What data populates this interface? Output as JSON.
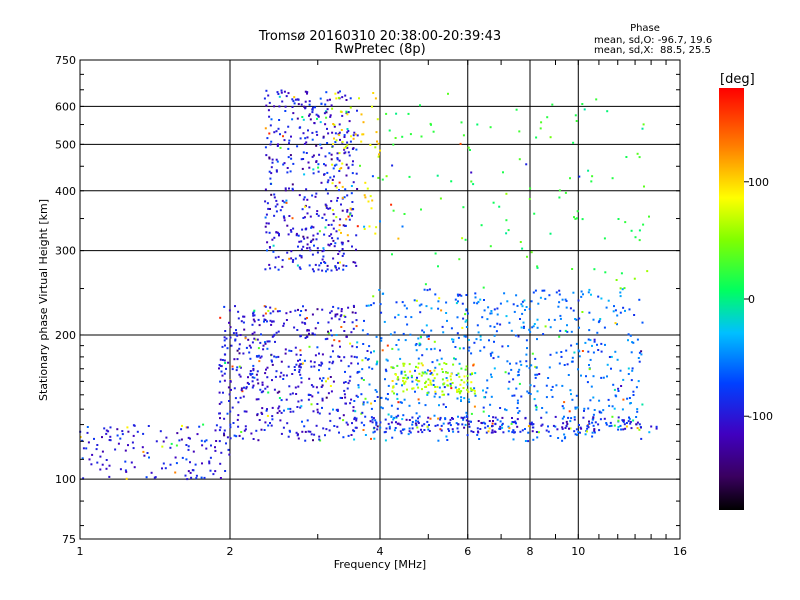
{
  "chart_data": {
    "type": "scatter",
    "title": "Tromsø 20160310 20:38:00-20:39:43",
    "subtitle": "RwPretec (8p)",
    "xlabel": "Frequency [MHz]",
    "ylabel": "Stationary phase Virtual Height [km]",
    "x_scale": "log",
    "y_scale": "log",
    "xlim": [
      1,
      16
    ],
    "ylim": [
      75,
      750
    ],
    "x_ticks": [
      1,
      2,
      4,
      6,
      8,
      10,
      16
    ],
    "x_tick_labels": [
      "1",
      "2",
      "4",
      "6",
      "8",
      "10",
      "16"
    ],
    "y_ticks": [
      75,
      100,
      200,
      300,
      400,
      500,
      600,
      750
    ],
    "y_tick_labels": [
      "75",
      "100",
      "200",
      "300",
      "400",
      "500",
      "600",
      "750"
    ],
    "grid": true,
    "phase_stats": {
      "heading": "Phase",
      "line_o": "mean, sd,O: -96.7, 19.6",
      "line_x": "mean, sd,X:  88.5, 25.5"
    },
    "colorbar": {
      "label": "[deg]",
      "range": [
        -180,
        180
      ],
      "ticks": [
        100,
        0,
        -100
      ],
      "tick_labels": [
        "100",
        "0",
        "-100"
      ],
      "colormap": "rainbow (black-violet-blue-cyan-green-yellow-orange-red)"
    },
    "point_clusters": [
      {
        "description": "low echo trace",
        "x_range": [
          1.0,
          2.0
        ],
        "y_range": [
          100,
          130
        ],
        "phase_mean": -100,
        "count": 140
      },
      {
        "description": "E/F1 region main cluster",
        "x_range": [
          1.9,
          3.6
        ],
        "y_range": [
          120,
          230
        ],
        "phase_mean": -100,
        "count": 520
      },
      {
        "description": "F2 region O-mode trace",
        "x_range": [
          2.35,
          3.6
        ],
        "y_range": [
          270,
          650
        ],
        "phase_mean": -100,
        "count": 480
      },
      {
        "description": "upper trace X-mode",
        "x_range": [
          3.2,
          4.0
        ],
        "y_range": [
          320,
          640
        ],
        "phase_mean": 90,
        "count": 70
      },
      {
        "description": "scattered mid-frequency echoes",
        "x_range": [
          3.6,
          13.5
        ],
        "y_range": [
          120,
          250
        ],
        "phase_mean": -60,
        "count": 700
      },
      {
        "description": "X-mode band near 160 km",
        "x_range": [
          4.2,
          6.2
        ],
        "y_range": [
          150,
          175
        ],
        "phase_mean": 60,
        "count": 120
      },
      {
        "description": "trace near 130 km",
        "x_range": [
          3.5,
          14.5
        ],
        "y_range": [
          125,
          135
        ],
        "phase_mean": -95,
        "count": 220
      },
      {
        "description": "sparse high echoes",
        "x_range": [
          4.0,
          14.0
        ],
        "y_range": [
          250,
          650
        ],
        "phase_mean": 20,
        "count": 120
      }
    ]
  }
}
